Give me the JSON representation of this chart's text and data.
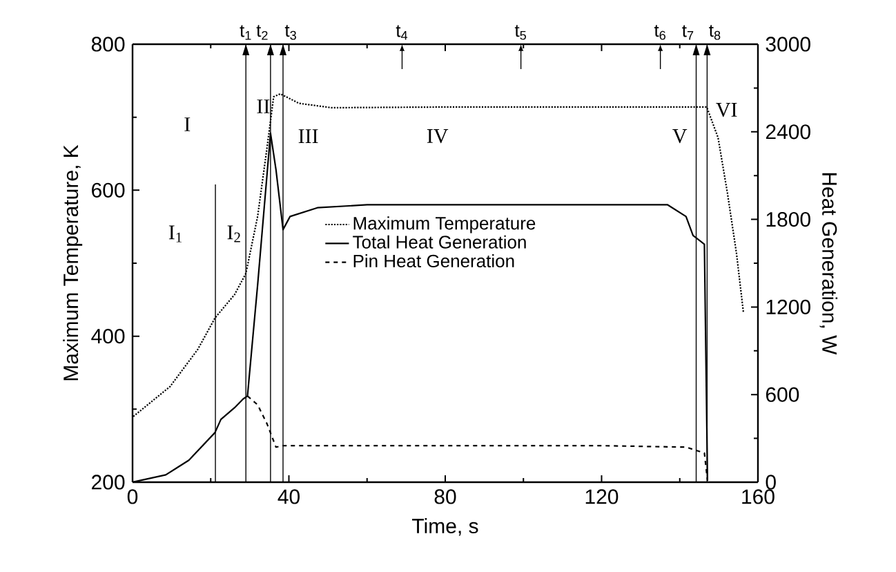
{
  "chart_data": {
    "type": "line",
    "xlabel": "Time, s",
    "ylabel": "Maximum Temperature, K",
    "y2label": "Heat Generation, W",
    "xlim": [
      0,
      160
    ],
    "xticks": [
      0,
      40,
      80,
      120,
      160
    ],
    "ylim": [
      200,
      800
    ],
    "yticks": [
      200,
      400,
      600,
      800
    ],
    "y2lim": [
      0,
      3000
    ],
    "y2ticks": [
      0,
      600,
      1200,
      1800,
      2400,
      3000
    ],
    "legend": "center",
    "grid": false,
    "series": [
      {
        "name": "Maximum Temperature",
        "color": "#000000",
        "line_style": "dotted",
        "axis": "y",
        "x": [
          0.2,
          9.6,
          16.7,
          21.1,
          26.1,
          29,
          32,
          34.4,
          36.1,
          37.8,
          42.6,
          50.9,
          80,
          120,
          146.9,
          149.8,
          152.2,
          154.5,
          156.3
        ],
        "values": [
          290,
          331,
          382,
          425,
          457,
          486,
          564,
          658,
          728,
          732,
          719,
          713,
          714,
          714,
          714,
          672,
          596,
          514,
          432
        ]
      },
      {
        "name": "Total Heat Generation",
        "color": "#000000",
        "line_style": "solid",
        "axis": "y2",
        "x": [
          0,
          8.5,
          14.4,
          21.1,
          22.6,
          26.1,
          28.3,
          29.4,
          32,
          35.3,
          36.7,
          38.5,
          40.3,
          47.3,
          60,
          100,
          136.9,
          141.6,
          143.4,
          146.3,
          147.1
        ],
        "values": [
          0,
          50,
          150,
          340,
          430,
          510,
          570,
          590,
          1350,
          2390,
          2140,
          1730,
          1820,
          1880,
          1900,
          1900,
          1900,
          1820,
          1690,
          1630,
          10
        ]
      },
      {
        "name": "Pin Heat Generation",
        "color": "#000000",
        "line_style": "dashed",
        "axis": "y2",
        "x": [
          29.4,
          32,
          34.4,
          36.7,
          38.5,
          80,
          120,
          141.6,
          146.3,
          147.1
        ],
        "values": [
          590,
          530,
          400,
          240,
          250,
          250,
          250,
          240,
          200,
          10
        ]
      }
    ],
    "ref_lines": [
      {
        "axis": "x",
        "value": 21.2,
        "label": null
      },
      {
        "axis": "x",
        "value": 29,
        "label": "t$_{1}$"
      },
      {
        "axis": "x",
        "value": 35.3,
        "label": "t$_{2}$"
      },
      {
        "axis": "x",
        "value": 38.5,
        "label": "t$_{3}$"
      },
      {
        "axis": "x",
        "value": 144.2,
        "label": "t$_{7}$"
      },
      {
        "axis": "x",
        "value": 147,
        "label": "t$_{8}$"
      }
    ],
    "annotations": [
      "t$_{4}$",
      "t$_{5}$",
      "t$_{6}$",
      "I",
      "I$_{1}$",
      "I$_{2}$",
      "II",
      "III",
      "IV",
      "V",
      "VI"
    ]
  }
}
